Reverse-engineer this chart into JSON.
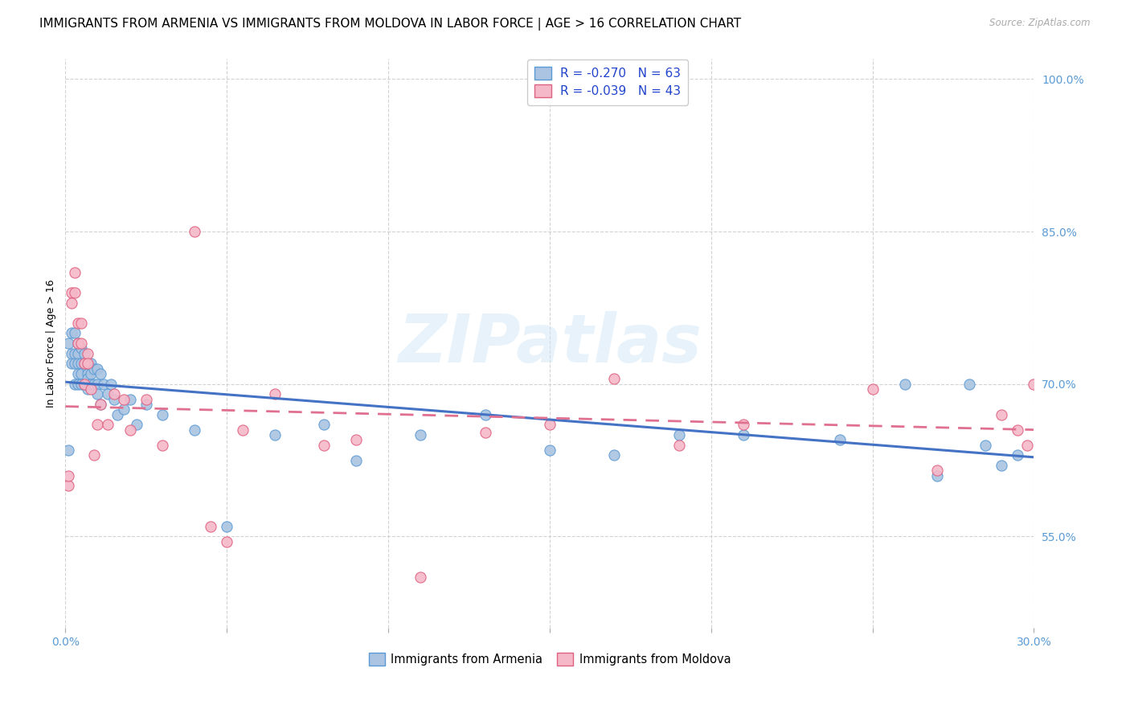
{
  "title": "IMMIGRANTS FROM ARMENIA VS IMMIGRANTS FROM MOLDOVA IN LABOR FORCE | AGE > 16 CORRELATION CHART",
  "source": "Source: ZipAtlas.com",
  "ylabel": "In Labor Force | Age > 16",
  "xlim": [
    0.0,
    0.3
  ],
  "ylim": [
    0.46,
    1.02
  ],
  "xticks": [
    0.0,
    0.05,
    0.1,
    0.15,
    0.2,
    0.25,
    0.3
  ],
  "yticks": [
    0.55,
    0.7,
    0.85,
    1.0
  ],
  "yticklabels": [
    "55.0%",
    "70.0%",
    "85.0%",
    "100.0%"
  ],
  "armenia_color": "#aac4e2",
  "armenia_edge": "#5b9bd5",
  "moldova_color": "#f5b8c8",
  "moldova_edge": "#e06080",
  "armenia_line_color": "#4472c4",
  "moldova_line_color": "#e07090",
  "legend_R_armenia": "R = -0.270",
  "legend_N_armenia": "N = 63",
  "legend_R_moldova": "R = -0.039",
  "legend_N_moldova": "N = 43",
  "watermark": "ZIPatlas",
  "armenia_x": [
    0.001,
    0.001,
    0.002,
    0.002,
    0.002,
    0.003,
    0.003,
    0.003,
    0.003,
    0.004,
    0.004,
    0.004,
    0.004,
    0.004,
    0.005,
    0.005,
    0.005,
    0.005,
    0.006,
    0.006,
    0.006,
    0.007,
    0.007,
    0.007,
    0.007,
    0.008,
    0.008,
    0.008,
    0.009,
    0.009,
    0.01,
    0.01,
    0.01,
    0.011,
    0.011,
    0.012,
    0.013,
    0.014,
    0.015,
    0.016,
    0.018,
    0.02,
    0.022,
    0.025,
    0.03,
    0.04,
    0.05,
    0.065,
    0.08,
    0.09,
    0.11,
    0.13,
    0.15,
    0.17,
    0.19,
    0.21,
    0.24,
    0.26,
    0.27,
    0.28,
    0.285,
    0.29,
    0.295
  ],
  "armenia_y": [
    0.635,
    0.74,
    0.75,
    0.73,
    0.72,
    0.75,
    0.73,
    0.72,
    0.7,
    0.74,
    0.73,
    0.72,
    0.71,
    0.7,
    0.735,
    0.72,
    0.71,
    0.7,
    0.73,
    0.72,
    0.7,
    0.715,
    0.71,
    0.705,
    0.695,
    0.72,
    0.71,
    0.7,
    0.715,
    0.7,
    0.715,
    0.7,
    0.69,
    0.71,
    0.68,
    0.7,
    0.69,
    0.7,
    0.685,
    0.67,
    0.675,
    0.685,
    0.66,
    0.68,
    0.67,
    0.655,
    0.56,
    0.65,
    0.66,
    0.625,
    0.65,
    0.67,
    0.635,
    0.63,
    0.65,
    0.65,
    0.645,
    0.7,
    0.61,
    0.7,
    0.64,
    0.62,
    0.63
  ],
  "moldova_x": [
    0.001,
    0.001,
    0.002,
    0.002,
    0.003,
    0.003,
    0.004,
    0.004,
    0.005,
    0.005,
    0.006,
    0.006,
    0.007,
    0.007,
    0.008,
    0.009,
    0.01,
    0.011,
    0.013,
    0.015,
    0.018,
    0.02,
    0.025,
    0.03,
    0.04,
    0.045,
    0.05,
    0.055,
    0.065,
    0.08,
    0.09,
    0.11,
    0.13,
    0.15,
    0.17,
    0.19,
    0.21,
    0.25,
    0.27,
    0.29,
    0.295,
    0.298,
    0.3
  ],
  "moldova_y": [
    0.6,
    0.61,
    0.79,
    0.78,
    0.81,
    0.79,
    0.76,
    0.74,
    0.76,
    0.74,
    0.72,
    0.7,
    0.73,
    0.72,
    0.695,
    0.63,
    0.66,
    0.68,
    0.66,
    0.69,
    0.685,
    0.655,
    0.685,
    0.64,
    0.85,
    0.56,
    0.545,
    0.655,
    0.69,
    0.64,
    0.645,
    0.51,
    0.652,
    0.66,
    0.705,
    0.64,
    0.66,
    0.695,
    0.615,
    0.67,
    0.655,
    0.64,
    0.7
  ],
  "background_color": "#ffffff",
  "grid_color": "#c8c8c8",
  "title_fontsize": 11,
  "axis_label_fontsize": 9,
  "tick_fontsize": 10,
  "dot_size": 90
}
